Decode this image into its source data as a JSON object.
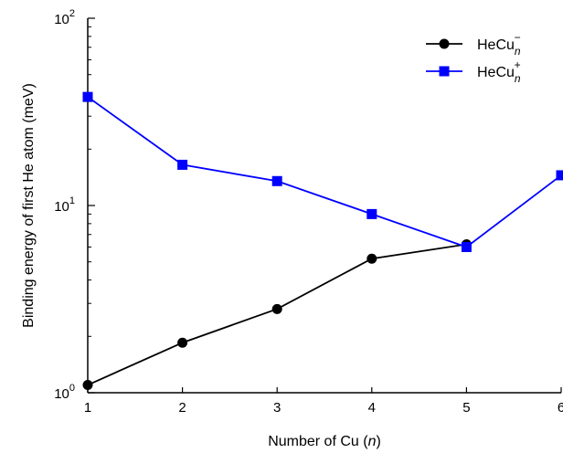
{
  "chart_data": {
    "type": "line",
    "xlabel": "Number of Cu (n)",
    "ylabel": "Binding energy of first He atom (meV)",
    "x": [
      1,
      2,
      3,
      4,
      5,
      6
    ],
    "x_ticks": [
      "1",
      "2",
      "3",
      "4",
      "5",
      "6"
    ],
    "xlim": [
      1,
      6
    ],
    "ylim": [
      1,
      100
    ],
    "yscale": "log",
    "y_ticks": [
      {
        "value": 1,
        "base": "10",
        "exp": "0"
      },
      {
        "value": 10,
        "base": "10",
        "exp": "1"
      },
      {
        "value": 100,
        "base": "10",
        "exp": "2"
      }
    ],
    "grid": false,
    "legend_position": "top-right",
    "series": [
      {
        "name": "HeCu",
        "sub": "n",
        "sup": "−",
        "color": "#000000",
        "marker": "circle",
        "values": [
          1.1,
          1.85,
          2.8,
          5.2,
          6.2,
          null
        ]
      },
      {
        "name": "HeCu",
        "sub": "n",
        "sup": "+",
        "color": "#0000ff",
        "marker": "square",
        "values": [
          38,
          16.5,
          13.5,
          9,
          6,
          14.5
        ]
      }
    ]
  }
}
